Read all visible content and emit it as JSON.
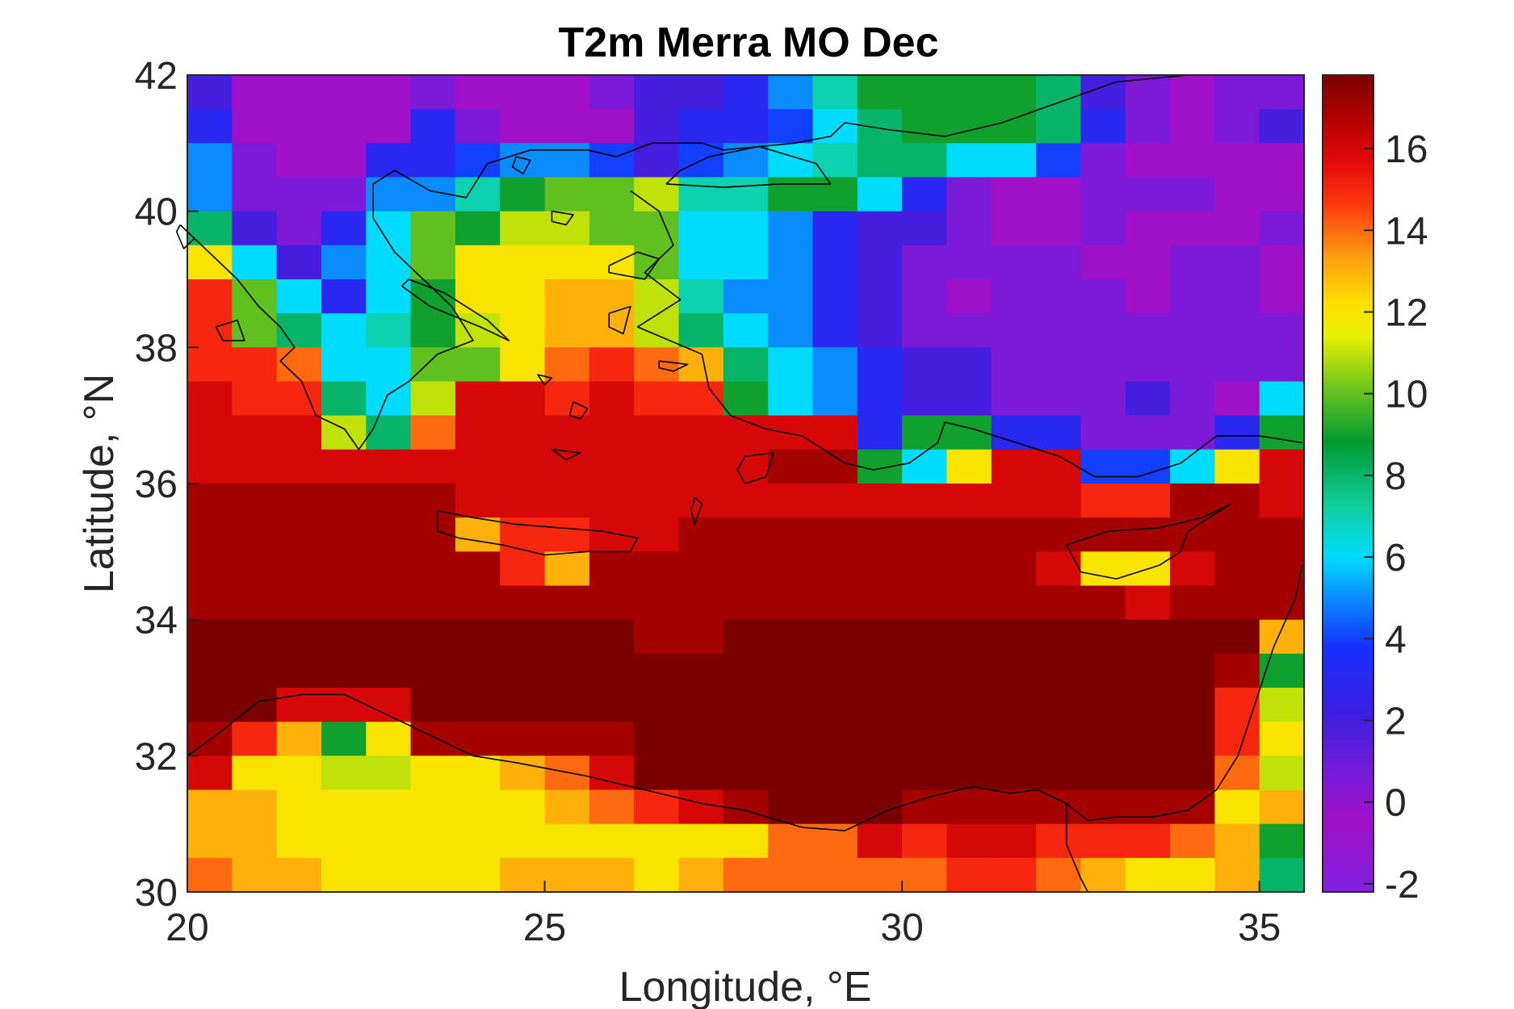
{
  "chart_data": {
    "type": "heatmap",
    "title": "T2m Merra MO Dec",
    "xlabel": "Longitude, °E",
    "ylabel": "Latitude, °N",
    "xlim": [
      20,
      35.625
    ],
    "ylim": [
      30,
      42
    ],
    "x_ticks": [
      "20",
      "25",
      "30",
      "35"
    ],
    "y_ticks": [
      "30",
      "32",
      "34",
      "36",
      "38",
      "40",
      "42"
    ],
    "colorbar": {
      "range": [
        -2.2,
        17.8
      ],
      "ticks": [
        "-2",
        "0",
        "2",
        "4",
        "6",
        "8",
        "10",
        "12",
        "14",
        "16"
      ],
      "colormap": "jet-like (violet → blue → cyan → green → yellow → red → dark red)"
    },
    "grid": {
      "x0": 20,
      "dx": 0.625,
      "y0": 30,
      "dy": 0.5,
      "cols": 25,
      "rows": 24,
      "rows_top_to_bottom": [
        [
          2,
          0,
          0,
          0,
          0,
          1,
          0,
          0,
          0,
          1,
          2,
          2,
          3,
          5,
          7,
          9,
          9,
          9,
          9,
          8,
          2,
          1,
          0,
          1,
          1
        ],
        [
          3,
          0,
          0,
          0,
          0,
          3,
          1,
          0,
          0,
          0,
          2,
          3,
          3,
          4,
          6,
          8,
          9,
          9,
          9,
          8,
          3,
          1,
          0,
          1,
          2
        ],
        [
          5,
          1,
          0,
          0,
          3,
          3,
          4,
          5,
          5,
          4,
          2,
          4,
          5,
          6,
          7,
          8,
          8,
          6,
          6,
          4,
          1,
          0,
          0,
          0,
          0
        ],
        [
          5,
          1,
          1,
          1,
          5,
          5,
          7,
          9,
          10,
          10,
          11,
          7,
          7,
          9,
          9,
          6,
          3,
          1,
          0,
          0,
          1,
          1,
          1,
          0,
          0
        ],
        [
          8,
          2,
          1,
          3,
          6,
          10,
          9,
          11,
          11,
          10,
          10,
          6,
          6,
          5,
          3,
          2,
          2,
          1,
          0,
          0,
          1,
          0,
          0,
          0,
          1
        ],
        [
          12,
          6,
          2,
          5,
          6,
          10,
          12,
          12,
          12,
          12,
          10,
          6,
          6,
          5,
          3,
          2,
          1,
          1,
          1,
          1,
          0,
          0,
          1,
          1,
          0
        ],
        [
          15,
          10,
          6,
          3,
          6,
          9,
          12,
          12,
          13,
          13,
          11,
          7,
          5,
          5,
          3,
          2,
          1,
          0,
          1,
          1,
          1,
          0,
          1,
          1,
          0
        ],
        [
          15,
          10,
          8,
          6,
          7,
          9,
          11,
          12,
          13,
          13,
          11,
          8,
          6,
          5,
          3,
          2,
          1,
          1,
          1,
          1,
          1,
          1,
          1,
          1,
          1
        ],
        [
          15,
          15,
          14,
          6,
          6,
          10,
          10,
          12,
          14,
          15,
          14,
          13,
          8,
          6,
          5,
          3,
          2,
          2,
          1,
          1,
          1,
          1,
          1,
          1,
          1
        ],
        [
          16,
          15,
          15,
          8,
          6,
          11,
          16,
          16,
          15,
          16,
          15,
          15,
          9,
          6,
          5,
          3,
          2,
          2,
          1,
          1,
          1,
          2,
          1,
          0,
          6
        ],
        [
          16,
          16,
          16,
          11,
          8,
          14,
          16,
          16,
          16,
          16,
          16,
          16,
          16,
          16,
          16,
          3,
          9,
          9,
          3,
          3,
          1,
          1,
          1,
          3,
          9
        ],
        [
          16,
          16,
          16,
          16,
          16,
          16,
          16,
          16,
          16,
          16,
          16,
          16,
          16,
          17,
          17,
          9,
          6,
          12,
          16,
          16,
          4,
          4,
          6,
          12,
          16
        ],
        [
          17,
          17,
          17,
          17,
          17,
          17,
          16,
          16,
          16,
          16,
          16,
          16,
          16,
          16,
          16,
          16,
          16,
          16,
          16,
          16,
          15,
          15,
          17,
          17,
          16
        ],
        [
          17,
          17,
          17,
          17,
          17,
          17,
          13,
          15,
          15,
          16,
          16,
          17,
          17,
          17,
          17,
          17,
          17,
          17,
          17,
          17,
          17,
          17,
          17,
          17,
          17
        ],
        [
          17,
          17,
          17,
          17,
          17,
          17,
          17,
          15,
          13,
          17,
          17,
          17,
          17,
          17,
          17,
          17,
          17,
          17,
          17,
          16,
          12,
          12,
          16,
          17,
          17
        ],
        [
          17,
          17,
          17,
          17,
          17,
          17,
          17,
          17,
          17,
          17,
          17,
          17,
          17,
          17,
          17,
          17,
          17,
          17,
          17,
          17,
          17,
          16,
          17,
          17,
          17
        ],
        [
          18,
          18,
          18,
          18,
          18,
          18,
          18,
          18,
          18,
          18,
          17,
          17,
          18,
          18,
          18,
          18,
          18,
          18,
          18,
          18,
          18,
          18,
          18,
          18,
          13
        ],
        [
          18,
          18,
          18,
          18,
          18,
          18,
          18,
          18,
          18,
          18,
          18,
          18,
          18,
          18,
          18,
          18,
          18,
          18,
          18,
          18,
          18,
          18,
          18,
          17,
          9
        ],
        [
          18,
          18,
          16,
          16,
          16,
          18,
          18,
          18,
          18,
          18,
          18,
          18,
          18,
          18,
          18,
          18,
          18,
          18,
          18,
          18,
          18,
          18,
          18,
          15,
          11
        ],
        [
          17,
          15,
          13,
          9,
          12,
          17,
          17,
          17,
          17,
          17,
          18,
          18,
          18,
          18,
          18,
          18,
          18,
          18,
          18,
          18,
          18,
          18,
          18,
          15,
          12
        ],
        [
          16,
          12,
          12,
          11,
          11,
          12,
          12,
          13,
          14,
          16,
          18,
          18,
          18,
          18,
          18,
          18,
          18,
          18,
          18,
          18,
          18,
          18,
          18,
          14,
          11
        ],
        [
          13,
          13,
          12,
          12,
          12,
          12,
          12,
          12,
          13,
          14,
          15,
          16,
          17,
          18,
          18,
          18,
          17,
          17,
          17,
          17,
          17,
          17,
          17,
          12,
          13
        ],
        [
          13,
          13,
          12,
          12,
          12,
          12,
          12,
          12,
          12,
          12,
          12,
          12,
          12,
          14,
          14,
          16,
          15,
          16,
          16,
          15,
          15,
          15,
          14,
          13,
          9
        ],
        [
          14,
          13,
          13,
          12,
          12,
          12,
          12,
          13,
          13,
          13,
          12,
          13,
          14,
          14,
          14,
          14,
          14,
          15,
          15,
          14,
          13,
          12,
          12,
          13,
          8
        ]
      ]
    },
    "coastlines": "black contour lines of coasts and islands (Greece, Aegean islands, Turkey, Crete, Cyprus, Libya, Egypt)"
  }
}
